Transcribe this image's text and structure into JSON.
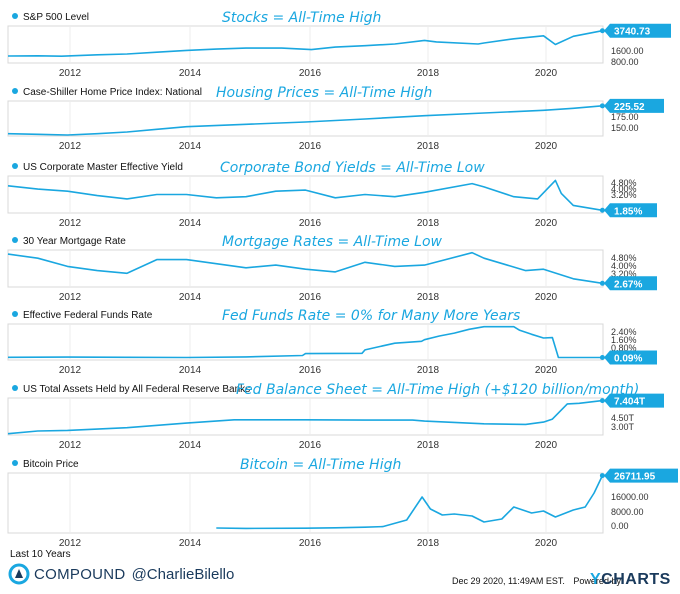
{
  "footer": {
    "range_label": "Last 10 Years",
    "brand": "COMPOUND",
    "handle": "@CharlieBilello",
    "timestamp": "Dec 29 2020, 11:49AM EST.",
    "powered_by": "Powered by",
    "ycharts_y": "Y",
    "ycharts_rest": "CHARTS"
  },
  "colors": {
    "line": "#1aa7e0",
    "text_dark": "#1a3a5c",
    "grid": "#d8d8d8"
  },
  "chart_data": [
    {
      "type": "line",
      "series_name": "S&P 500 Level",
      "annotation": "Stocks = All-Time High",
      "x_ticks": [
        "2012",
        "2014",
        "2016",
        "2018",
        "2020"
      ],
      "y_ticks": [
        "1600.00",
        "800.00"
      ],
      "ylim": [
        600,
        4200
      ],
      "current_label": "3740.73",
      "x": [
        2011.0,
        2011.5,
        2011.9,
        2012.5,
        2013.0,
        2013.5,
        2014.0,
        2014.5,
        2015.0,
        2015.6,
        2016.1,
        2016.5,
        2017.0,
        2017.5,
        2018.0,
        2018.2,
        2018.9,
        2019.0,
        2019.5,
        2020.0,
        2020.2,
        2020.5,
        2020.99
      ],
      "y": [
        1280,
        1300,
        1260,
        1400,
        1480,
        1650,
        1830,
        1950,
        2050,
        2050,
        1900,
        2150,
        2280,
        2450,
        2800,
        2650,
        2450,
        2550,
        2950,
        3250,
        2400,
        3200,
        3740.73
      ]
    },
    {
      "type": "line",
      "series_name": "Case-Shiller Home Price Index: National",
      "annotation": "Housing Prices = All-Time High",
      "x_ticks": [
        "2012",
        "2014",
        "2016",
        "2018",
        "2020"
      ],
      "y_ticks": [
        "175.00",
        "150.00"
      ],
      "ylim": [
        135,
        240
      ],
      "current_label": "225.52",
      "x": [
        2011.0,
        2011.5,
        2012.0,
        2012.5,
        2013.0,
        2013.5,
        2014.0,
        2015.0,
        2016.0,
        2017.0,
        2018.0,
        2019.0,
        2020.0,
        2020.5,
        2020.99
      ],
      "y": [
        142,
        140,
        138,
        142,
        147,
        155,
        163,
        170,
        177,
        186,
        196,
        204,
        212,
        218,
        225.52
      ]
    },
    {
      "type": "line",
      "series_name": "US Corporate Master Effective Yield",
      "annotation": "Corporate Bond Yields = All-Time Low",
      "x_ticks": [
        "2012",
        "2014",
        "2016",
        "2018",
        "2020"
      ],
      "y_ticks": [
        "4.80%",
        "4.00%",
        "3.20%"
      ],
      "ylim": [
        1.6,
        5.0
      ],
      "current_label": "1.85%",
      "x": [
        2011.0,
        2011.5,
        2012.0,
        2012.5,
        2013.0,
        2013.5,
        2014.0,
        2014.5,
        2015.0,
        2015.5,
        2016.0,
        2016.5,
        2017.0,
        2017.5,
        2018.0,
        2018.8,
        2019.0,
        2019.5,
        2019.9,
        2020.2,
        2020.3,
        2020.5,
        2020.99
      ],
      "y": [
        4.1,
        3.8,
        3.6,
        3.2,
        2.9,
        3.3,
        3.3,
        3.0,
        3.1,
        3.6,
        3.7,
        3.0,
        3.3,
        3.1,
        3.5,
        4.3,
        4.0,
        3.1,
        2.9,
        4.6,
        3.4,
        2.3,
        1.85
      ]
    },
    {
      "type": "line",
      "series_name": "30 Year Mortgage Rate",
      "annotation": "Mortgage Rates = All-Time Low",
      "x_ticks": [
        "2012",
        "2014",
        "2016",
        "2018",
        "2020"
      ],
      "y_ticks": [
        "4.80%",
        "4.00%",
        "3.20%"
      ],
      "ylim": [
        2.4,
        5.1
      ],
      "current_label": "2.67%",
      "x": [
        2011.0,
        2011.5,
        2012.0,
        2012.5,
        2013.0,
        2013.5,
        2014.0,
        2015.0,
        2015.5,
        2016.0,
        2016.5,
        2017.0,
        2017.5,
        2018.0,
        2018.8,
        2019.0,
        2019.7,
        2020.0,
        2020.5,
        2020.99
      ],
      "y": [
        4.8,
        4.5,
        3.9,
        3.6,
        3.4,
        4.4,
        4.4,
        3.8,
        4.0,
        3.7,
        3.5,
        4.2,
        3.9,
        4.0,
        4.9,
        4.5,
        3.6,
        3.7,
        3.0,
        2.67
      ]
    },
    {
      "type": "line",
      "series_name": "Effective Federal Funds Rate",
      "annotation": "Fed Funds Rate = 0% for Many More Years",
      "x_ticks": [
        "2012",
        "2014",
        "2016",
        "2018",
        "2020"
      ],
      "y_ticks": [
        "2.40%",
        "1.60%",
        "0.80%"
      ],
      "ylim": [
        -0.1,
        2.6
      ],
      "current_label": "0.09%",
      "x": [
        2011.0,
        2012.0,
        2013.0,
        2014.0,
        2015.0,
        2015.95,
        2016.0,
        2016.95,
        2017.0,
        2017.25,
        2017.5,
        2017.95,
        2018.0,
        2018.25,
        2018.5,
        2018.75,
        2019.0,
        2019.5,
        2019.6,
        2019.8,
        2020.0,
        2020.15,
        2020.25,
        2020.99
      ],
      "y": [
        0.1,
        0.12,
        0.1,
        0.09,
        0.13,
        0.24,
        0.38,
        0.4,
        0.66,
        0.91,
        1.16,
        1.3,
        1.42,
        1.7,
        1.92,
        2.2,
        2.4,
        2.4,
        2.13,
        1.83,
        1.55,
        1.58,
        0.09,
        0.09
      ]
    },
    {
      "type": "line",
      "series_name": "US Total Assets Held by All Federal Reserve Banks",
      "annotation": "Fed Balance Sheet = All-Time High (+$120 billion/month)",
      "x_ticks": [
        "2012",
        "2014",
        "2016",
        "2018",
        "2020"
      ],
      "y_ticks": [
        "4.50T",
        "3.00T"
      ],
      "ylim": [
        2.2,
        7.8
      ],
      "current_label": "7.404T",
      "x": [
        2011.0,
        2011.5,
        2012.0,
        2013.0,
        2014.0,
        2014.8,
        2015.0,
        2016.0,
        2017.0,
        2017.8,
        2018.0,
        2019.0,
        2019.7,
        2020.0,
        2020.15,
        2020.4,
        2020.6,
        2020.99
      ],
      "y": [
        2.4,
        2.8,
        2.9,
        3.3,
        4.0,
        4.5,
        4.5,
        4.5,
        4.45,
        4.45,
        4.3,
        3.9,
        3.8,
        4.15,
        4.6,
        6.9,
        7.0,
        7.404
      ]
    },
    {
      "type": "line",
      "series_name": "Bitcoin Price",
      "annotation": "Bitcoin = All-Time High",
      "x_ticks": [
        "2012",
        "2014",
        "2016",
        "2018",
        "2020"
      ],
      "y_ticks": [
        "16000.00",
        "8000.00",
        "0.00"
      ],
      "ylim": [
        -2000,
        28000
      ],
      "current_label": "26711.95",
      "x": [
        2014.5,
        2015.0,
        2016.0,
        2016.5,
        2017.0,
        2017.3,
        2017.7,
        2017.96,
        2018.1,
        2018.3,
        2018.5,
        2018.8,
        2019.0,
        2019.3,
        2019.5,
        2019.8,
        2020.0,
        2020.2,
        2020.5,
        2020.7,
        2020.85,
        2020.99
      ],
      "y": [
        500,
        300,
        400,
        600,
        900,
        1200,
        4500,
        16000,
        10000,
        7000,
        7500,
        6500,
        3500,
        5000,
        11000,
        8000,
        9000,
        6000,
        9500,
        11000,
        18000,
        26711.95
      ]
    }
  ]
}
